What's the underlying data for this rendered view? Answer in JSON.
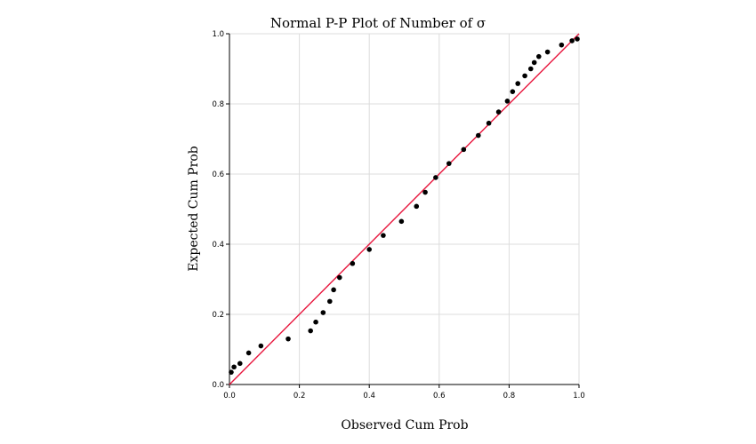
{
  "chart_data": {
    "type": "scatter",
    "title": "Normal P-P Plot of Number of σ",
    "xlabel": "Observed Cum Prob",
    "ylabel": "Expected Cum Prob",
    "xlim": [
      0,
      1
    ],
    "ylim": [
      0,
      1
    ],
    "xticks": [
      "0.0",
      "0.2",
      "0.4",
      "0.6",
      "0.8",
      "1.0"
    ],
    "yticks": [
      "0.0",
      "0.2",
      "0.4",
      "0.6",
      "0.8",
      "1.0"
    ],
    "grid": true,
    "reference_line": {
      "from": [
        0,
        0
      ],
      "to": [
        1,
        1
      ],
      "color": "#e8163d"
    },
    "point_color": "#000000",
    "points": [
      [
        0.005,
        0.035
      ],
      [
        0.013,
        0.05
      ],
      [
        0.03,
        0.06
      ],
      [
        0.055,
        0.09
      ],
      [
        0.09,
        0.11
      ],
      [
        0.168,
        0.13
      ],
      [
        0.232,
        0.153
      ],
      [
        0.247,
        0.178
      ],
      [
        0.268,
        0.205
      ],
      [
        0.287,
        0.237
      ],
      [
        0.298,
        0.27
      ],
      [
        0.315,
        0.305
      ],
      [
        0.352,
        0.345
      ],
      [
        0.4,
        0.385
      ],
      [
        0.44,
        0.425
      ],
      [
        0.492,
        0.465
      ],
      [
        0.535,
        0.508
      ],
      [
        0.56,
        0.548
      ],
      [
        0.59,
        0.59
      ],
      [
        0.628,
        0.63
      ],
      [
        0.67,
        0.67
      ],
      [
        0.712,
        0.71
      ],
      [
        0.742,
        0.745
      ],
      [
        0.77,
        0.777
      ],
      [
        0.795,
        0.808
      ],
      [
        0.81,
        0.835
      ],
      [
        0.825,
        0.858
      ],
      [
        0.845,
        0.88
      ],
      [
        0.862,
        0.9
      ],
      [
        0.872,
        0.918
      ],
      [
        0.885,
        0.935
      ],
      [
        0.91,
        0.948
      ],
      [
        0.95,
        0.968
      ],
      [
        0.98,
        0.98
      ],
      [
        0.995,
        0.985
      ]
    ]
  }
}
